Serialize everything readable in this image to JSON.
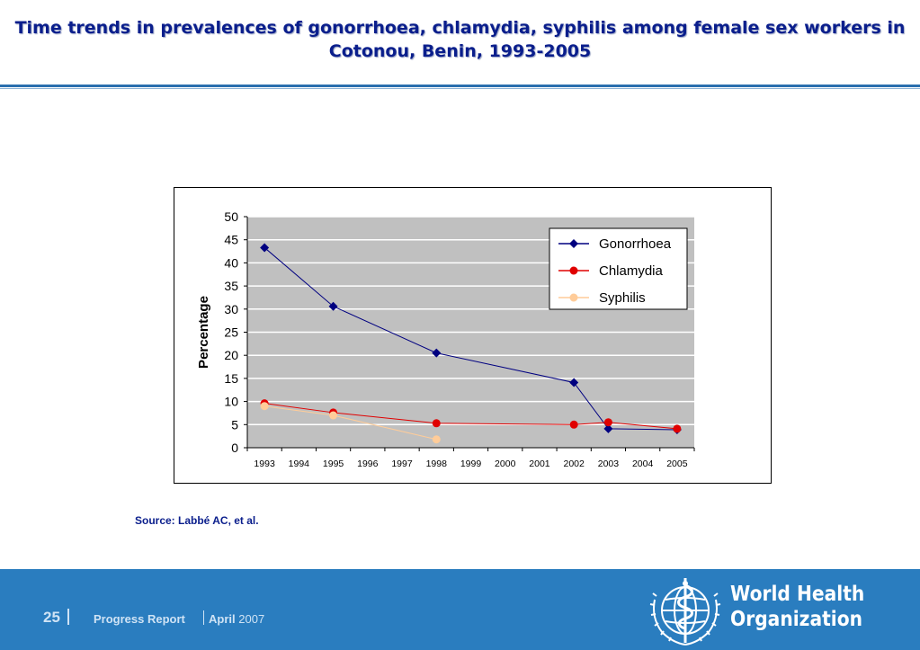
{
  "slide": {
    "title_line1": "Time trends in prevalences of gonorrhoea, chlamydia, syphilis among female sex workers in",
    "title_line2": "Cotonou, Benin, 1993-2005",
    "source": "Source: Labbé AC, et al."
  },
  "footer": {
    "page_number": "25",
    "report_label": "Progress Report",
    "month": "April",
    "year": "2007",
    "org_line1": "World Health",
    "org_line2": "Organization"
  },
  "colors": {
    "title": "#0a1e8c",
    "footer_bg": "#2a7dbf",
    "plot_bg": "#c0c0c0",
    "gonorrhoea": "#000080",
    "chlamydia": "#e00000",
    "syphilis": "#ffcc99"
  },
  "chart_data": {
    "type": "line",
    "title": "",
    "xlabel": "",
    "ylabel": "Percentage",
    "categories": [
      "1993",
      "1994",
      "1995",
      "1996",
      "1997",
      "1998",
      "1999",
      "2000",
      "2001",
      "2002",
      "2003",
      "2004",
      "2005"
    ],
    "ylim": [
      0,
      50
    ],
    "yticks": [
      0,
      5,
      10,
      15,
      20,
      25,
      30,
      35,
      40,
      45,
      50
    ],
    "grid": true,
    "legend": "top-right",
    "series": [
      {
        "name": "Gonorrhoea",
        "color": "#000080",
        "marker": "diamond",
        "points": [
          {
            "x": 1993,
            "y": 43.3
          },
          {
            "x": 1995,
            "y": 30.6
          },
          {
            "x": 1998,
            "y": 20.5
          },
          {
            "x": 2002,
            "y": 14.1
          },
          {
            "x": 2003,
            "y": 4.1
          },
          {
            "x": 2005,
            "y": 3.9
          }
        ]
      },
      {
        "name": "Chlamydia",
        "color": "#e00000",
        "marker": "circle",
        "points": [
          {
            "x": 1993,
            "y": 9.6
          },
          {
            "x": 1995,
            "y": 7.6
          },
          {
            "x": 1998,
            "y": 5.3
          },
          {
            "x": 2002,
            "y": 5.0
          },
          {
            "x": 2003,
            "y": 5.5
          },
          {
            "x": 2005,
            "y": 4.1
          }
        ]
      },
      {
        "name": "Syphilis",
        "color": "#ffcc99",
        "marker": "circle",
        "points": [
          {
            "x": 1993,
            "y": 9.0
          },
          {
            "x": 1995,
            "y": 7.0
          },
          {
            "x": 1998,
            "y": 1.8
          }
        ]
      }
    ]
  }
}
